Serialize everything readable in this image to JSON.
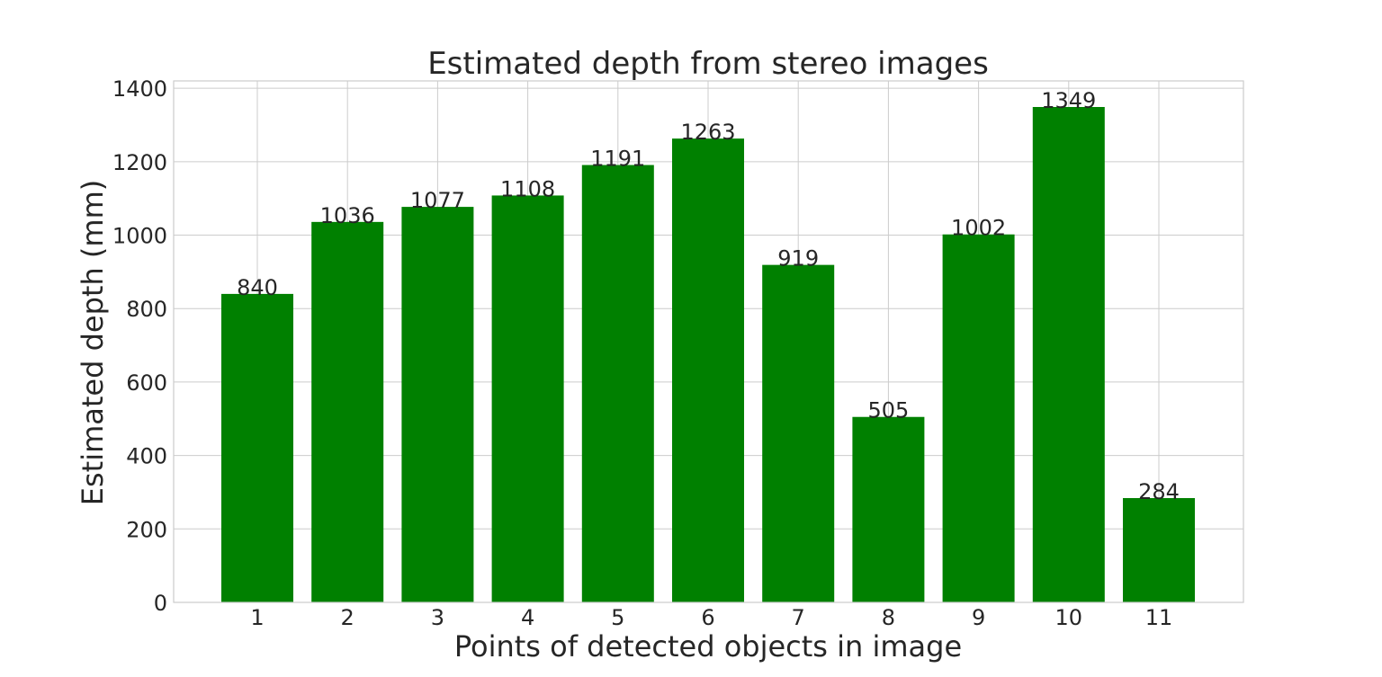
{
  "chart_data": {
    "type": "bar",
    "title": "Estimated depth from stereo images",
    "xlabel": "Points of detected objects in image",
    "ylabel": "Estimated depth (mm)",
    "categories": [
      "1",
      "2",
      "3",
      "4",
      "5",
      "6",
      "7",
      "8",
      "9",
      "10",
      "11"
    ],
    "values": [
      840,
      1036,
      1077,
      1108,
      1191,
      1263,
      919,
      505,
      1002,
      1349,
      284
    ],
    "data_labels": [
      "840",
      "1036",
      "1077",
      "1108",
      "1191",
      "1263",
      "919",
      "505",
      "1002",
      "1349",
      "284"
    ],
    "y_ticks": [
      0,
      200,
      400,
      600,
      800,
      1000,
      1200,
      1400
    ],
    "ylim": [
      0,
      1420
    ],
    "grid": true,
    "bar_color": "#008000",
    "grid_color": "#cccccc",
    "text_color": "#262626"
  }
}
